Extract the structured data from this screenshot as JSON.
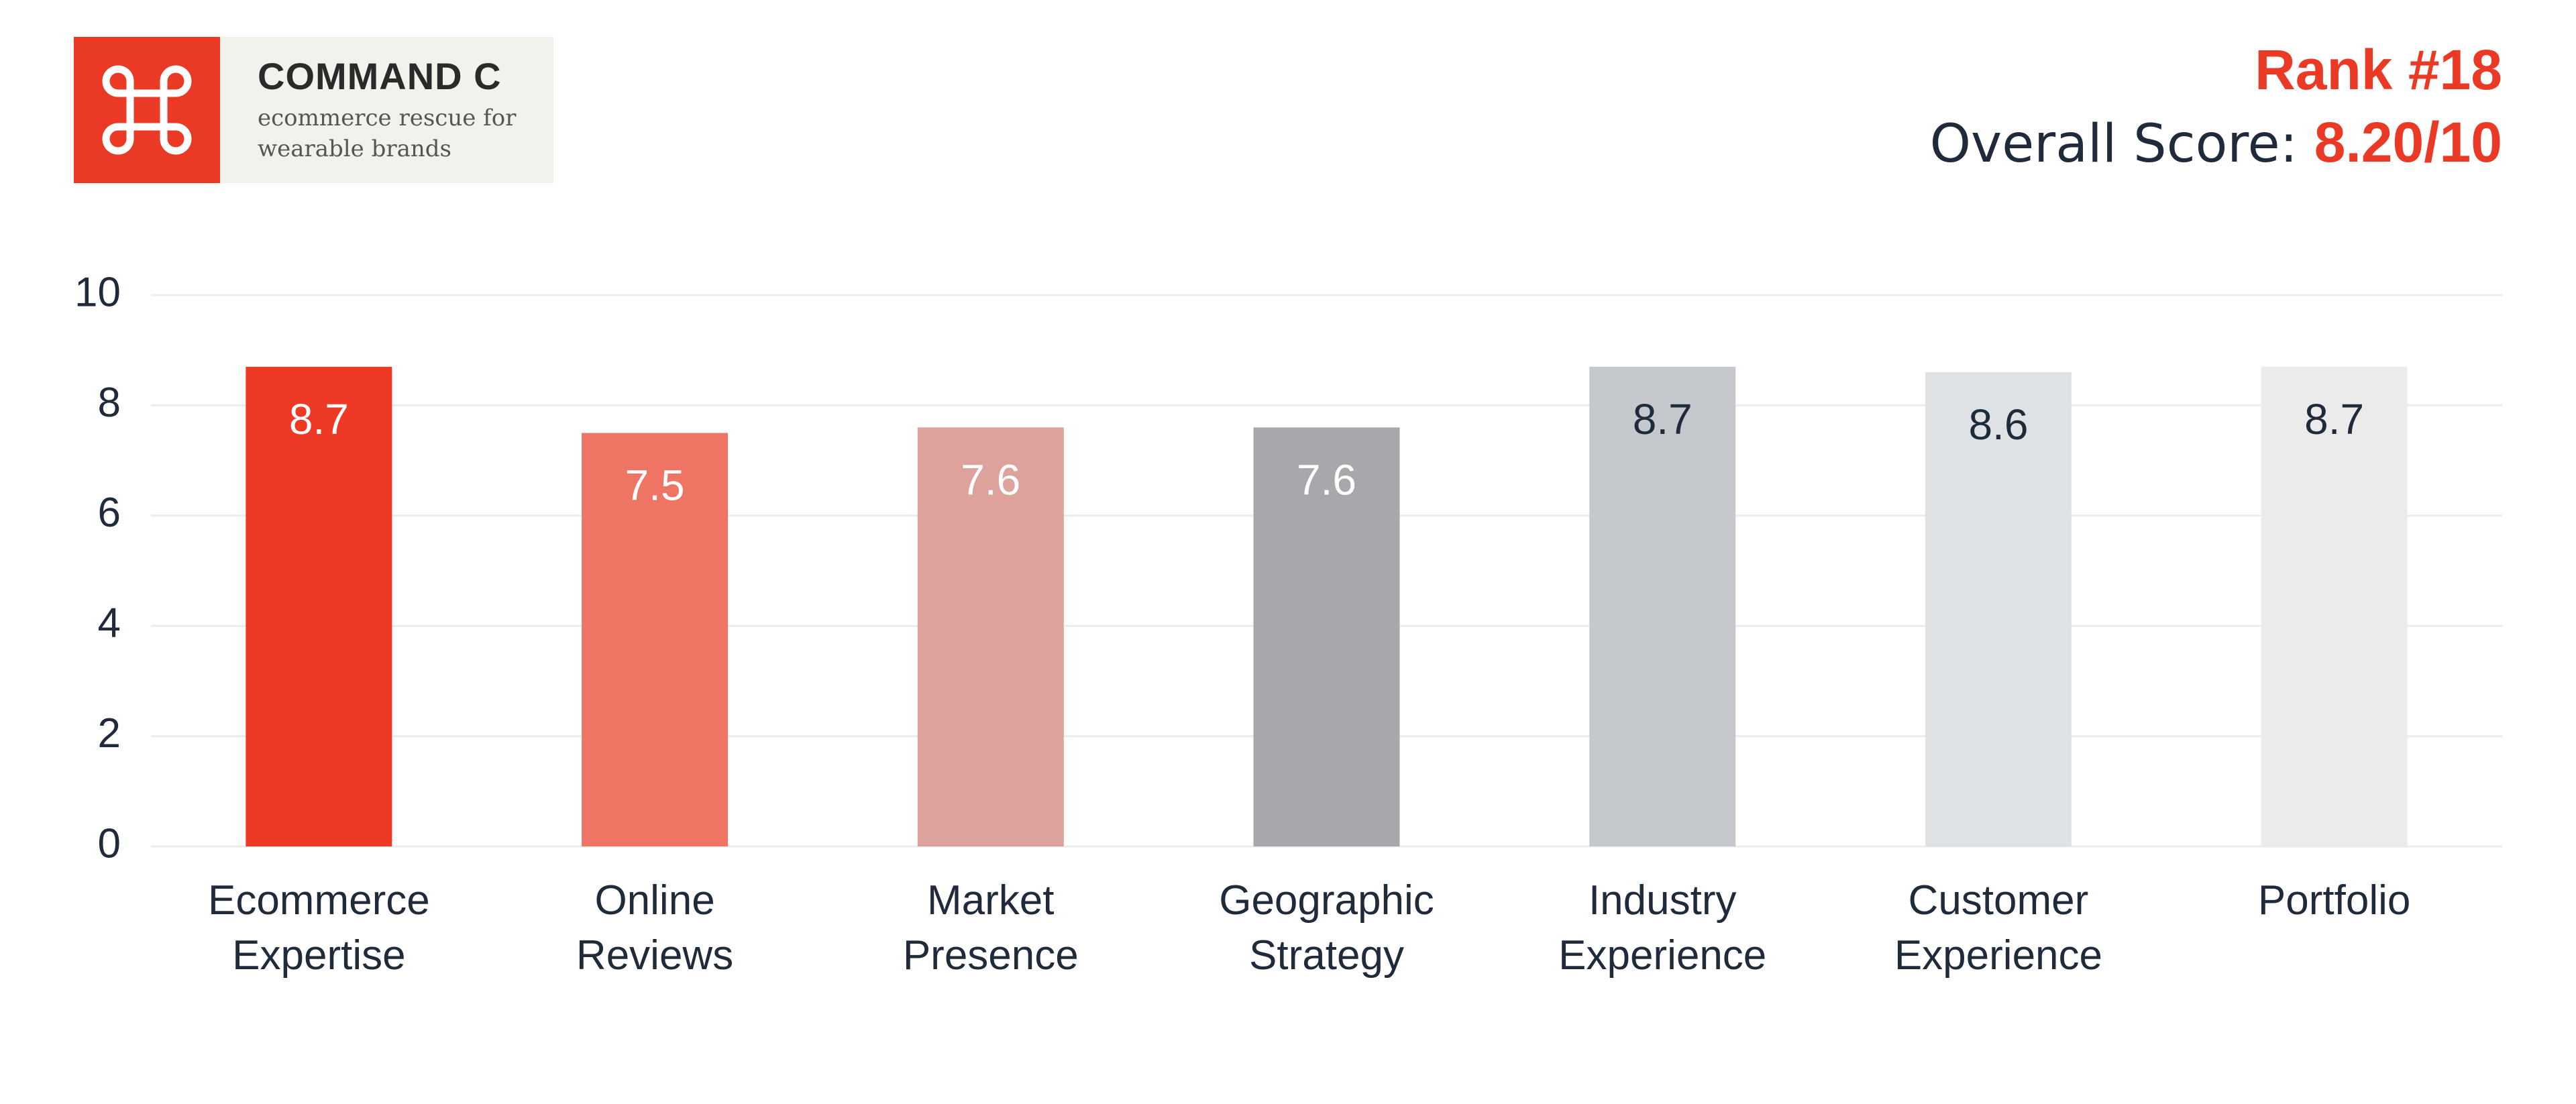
{
  "logo": {
    "name": "COMMAND C",
    "tagline_line1": "ecommerce rescue for",
    "tagline_line2": "wearable brands",
    "icon": "command-key-icon",
    "color": "#ea3a25"
  },
  "header": {
    "rank": "Rank #18",
    "overall_label": "Overall Score: ",
    "overall_value": "8.20/10"
  },
  "colors": {
    "accent": "#ea3a25",
    "text": "#1f2a3a",
    "grid": "#ececec"
  },
  "chart_data": {
    "type": "bar",
    "categories": [
      [
        "Ecommerce",
        "Expertise"
      ],
      [
        "Online",
        "Reviews"
      ],
      [
        "Market",
        "Presence"
      ],
      [
        "Geographic",
        "Strategy"
      ],
      [
        "Industry",
        "Experience"
      ],
      [
        "Customer",
        "Experience"
      ],
      [
        "Portfolio"
      ]
    ],
    "values": [
      8.7,
      7.5,
      7.6,
      7.6,
      8.7,
      8.6,
      8.7
    ],
    "bar_colors": [
      "#ee3a24",
      "#ee7564",
      "#dea29c",
      "#a7a8ac",
      "#c5c8cd",
      "#dfe2e5",
      "#ebebeb"
    ],
    "label_colors": [
      "#ffffff",
      "#ffffff",
      "#ffffff",
      "#ffffff",
      "#1f2a3a",
      "#1f2a3a",
      "#1f2a3a"
    ],
    "ylim": [
      0,
      10
    ],
    "yticks": [
      0,
      2,
      4,
      6,
      8,
      10
    ],
    "grid": true,
    "title": "",
    "xlabel": "",
    "ylabel": ""
  }
}
